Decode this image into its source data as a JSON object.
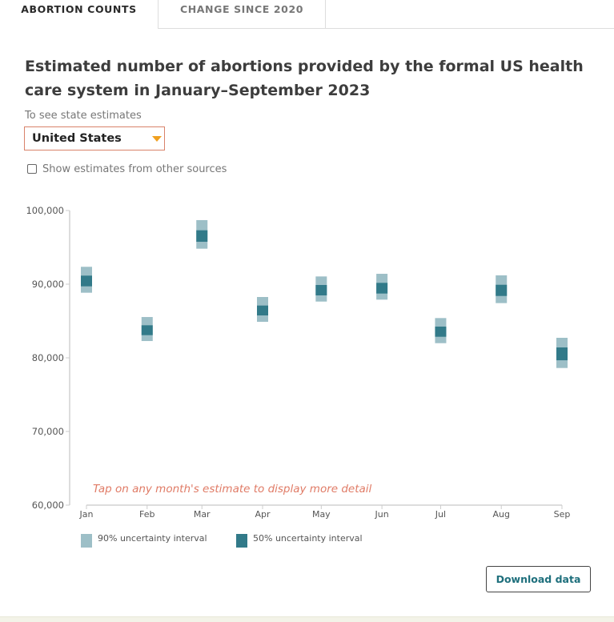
{
  "tabs": [
    {
      "label": "ABORTION COUNTS",
      "active": true
    },
    {
      "label": "CHANGE SINCE 2020",
      "active": false
    }
  ],
  "title": "Estimated number of abortions provided by the formal US health care system in January–September 2023",
  "state_select": {
    "label": "To see state estimates",
    "value": "United States"
  },
  "other_sources_checkbox": {
    "label": "Show estimates from other sources",
    "checked": false
  },
  "hint": "Tap on any month's estimate to display more detail",
  "download_label": "Download data",
  "colors": {
    "interval_90": "#9dbfc7",
    "interval_50": "#327a89",
    "hint": "#e07b66",
    "select_border": "#d9826a",
    "caret": "#f0a020"
  },
  "chart_data": {
    "type": "interval",
    "title": "Estimated number of abortions provided by the formal US health care system in January–September 2023",
    "xlabel": "",
    "ylabel": "",
    "ylim": [
      60000,
      100000
    ],
    "yticks": [
      "100,000",
      "90,000",
      "80,000",
      "70,000",
      "60,000"
    ],
    "ytick_values": [
      100000,
      90000,
      80000,
      70000,
      60000
    ],
    "categories": [
      "Jan",
      "Feb",
      "Mar",
      "Apr",
      "May",
      "Jun",
      "Jul",
      "Aug",
      "Sep"
    ],
    "grid": false,
    "legend": {
      "placement": "bottom-left",
      "entries": [
        "90% uncertainty interval",
        "50% uncertainty interval"
      ]
    },
    "series": [
      {
        "name": "90% uncertainty interval",
        "low": [
          88840,
          82280,
          94820,
          84890,
          87640,
          87900,
          81990,
          87430,
          78620
        ],
        "high": [
          92360,
          85540,
          98700,
          88260,
          91050,
          91410,
          85400,
          91200,
          82720
        ]
      },
      {
        "name": "50% uncertainty interval",
        "low": [
          89710,
          83080,
          95760,
          85760,
          88480,
          88730,
          82860,
          88400,
          79670
        ],
        "high": [
          91160,
          84420,
          97320,
          87100,
          89890,
          90180,
          84240,
          89920,
          81410
        ]
      }
    ]
  }
}
